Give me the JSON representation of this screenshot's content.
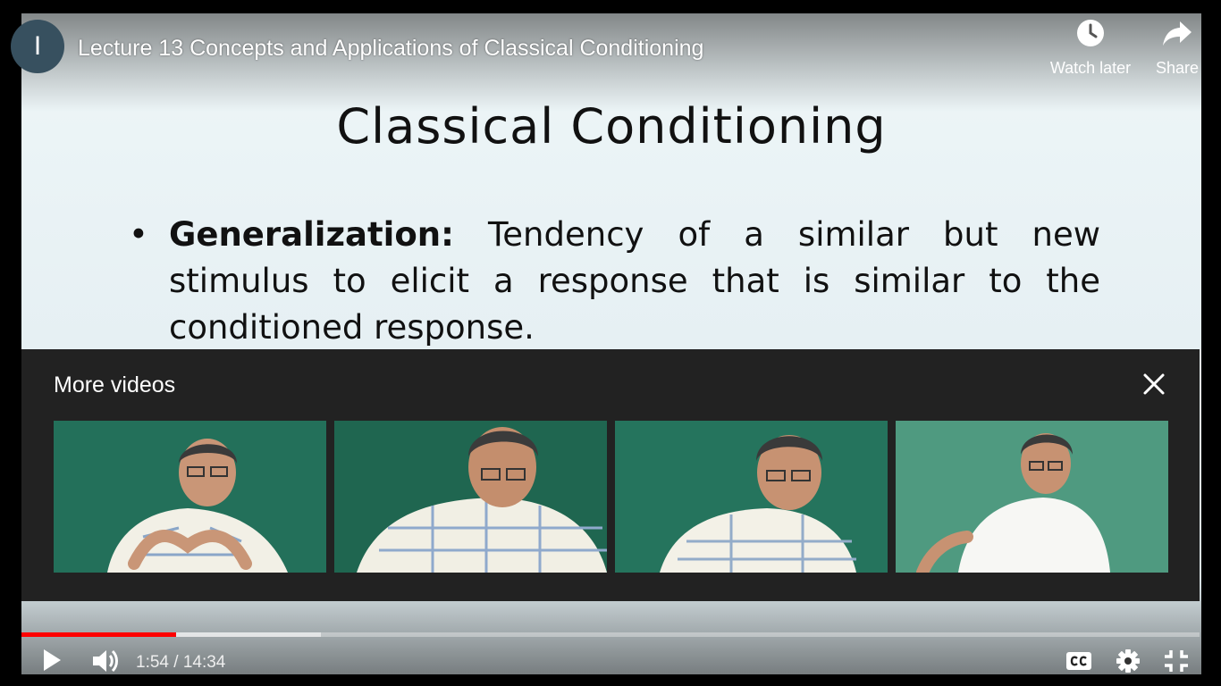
{
  "channel": {
    "initial": "I"
  },
  "video": {
    "title": "Lecture 13 Concepts and Applications of Classical Conditioning"
  },
  "top_actions": {
    "watch_later_label": "Watch later",
    "share_label": "Share"
  },
  "slide": {
    "title": "Classical Conditioning",
    "bullet_term": "Generalization:",
    "bullet_text": " Tendency of a similar but new stimulus to elicit a response that is similar to the conditioned response."
  },
  "more_videos": {
    "heading": "More videos",
    "items": [
      {
        "thumb": "lecturer-thumbnail-1"
      },
      {
        "thumb": "lecturer-thumbnail-2"
      },
      {
        "thumb": "lecturer-thumbnail-3"
      },
      {
        "thumb": "lecturer-thumbnail-4"
      }
    ]
  },
  "player": {
    "current_time": "1:54",
    "separator": " / ",
    "duration": "14:34",
    "played_fraction": 0.131,
    "buffered_fraction": 0.254,
    "icons": {
      "play": "play-icon",
      "volume": "volume-icon",
      "cc": "closed-captions-icon",
      "settings": "gear-icon",
      "exit_fullscreen": "exit-fullscreen-icon"
    }
  },
  "colors": {
    "progress_played": "#ff0000",
    "panel_bg": "#222222",
    "thumb_bg": "#1e6a55"
  }
}
